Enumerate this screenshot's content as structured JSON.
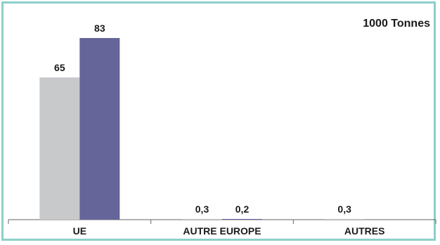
{
  "chart_data": {
    "type": "bar",
    "title": "1000 Tonnes",
    "categories": [
      "UE",
      "AUTRE EUROPE",
      "AUTRES"
    ],
    "series": [
      {
        "values": [
          65,
          0.3,
          0.3
        ],
        "labels": [
          "65",
          "0,3",
          "0,3"
        ],
        "color": "#c8c9cb"
      },
      {
        "values": [
          83,
          0.2,
          null
        ],
        "labels": [
          "83",
          "0,2",
          ""
        ],
        "color": "#65659a"
      }
    ],
    "ylim": [
      0,
      83
    ],
    "grid": false,
    "legend": "none",
    "xlabel": "",
    "ylabel": ""
  }
}
